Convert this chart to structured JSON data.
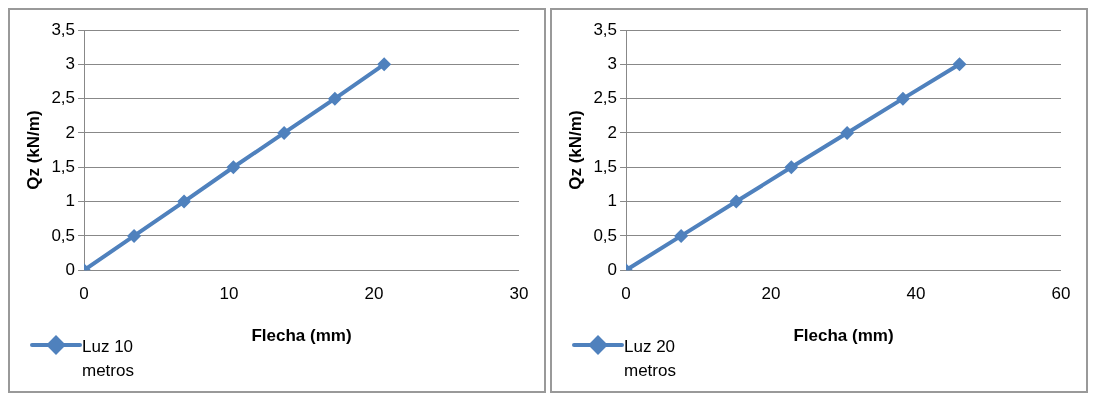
{
  "chart_data": [
    {
      "type": "line",
      "xlabel": "Flecha (mm)",
      "ylabel": "Qz (kN/m)",
      "x": [
        0,
        3.45,
        6.9,
        10.3,
        13.8,
        17.3,
        20.7
      ],
      "series": [
        {
          "name": "Luz 10 metros",
          "color": "#4f81bd",
          "values": [
            0,
            0.5,
            1,
            1.5,
            2,
            2.5,
            3
          ]
        }
      ],
      "xlim": [
        0,
        30
      ],
      "xticks": [
        0,
        10,
        20,
        30
      ],
      "ylim": [
        0,
        3.5
      ],
      "yticks": [
        0,
        {
          "value": 0.5,
          "label": "0,5"
        },
        1,
        {
          "value": 1.5,
          "label": "1,5"
        },
        2,
        {
          "value": 2.5,
          "label": "2,5"
        },
        3,
        {
          "value": 3.5,
          "label": "3,5"
        }
      ],
      "grid": "y",
      "legend": "bottom left",
      "marker": "diamond",
      "line_style": "solid"
    },
    {
      "type": "line",
      "xlabel": "Flecha (mm)",
      "ylabel": "Qz (kN/m)",
      "x": [
        0,
        7.6,
        15.2,
        22.8,
        30.5,
        38.2,
        46
      ],
      "series": [
        {
          "name": "Luz 20 metros",
          "color": "#4f81bd",
          "values": [
            0,
            0.5,
            1,
            1.5,
            2,
            2.5,
            3
          ]
        }
      ],
      "xlim": [
        0,
        60
      ],
      "xticks": [
        0,
        20,
        40,
        60
      ],
      "ylim": [
        0,
        3.5
      ],
      "yticks": [
        0,
        {
          "value": 0.5,
          "label": "0,5"
        },
        1,
        {
          "value": 1.5,
          "label": "1,5"
        },
        2,
        {
          "value": 2.5,
          "label": "2,5"
        },
        3,
        {
          "value": 3.5,
          "label": "3,5"
        }
      ],
      "grid": "y",
      "legend": "bottom left",
      "marker": "diamond",
      "line_style": "solid"
    }
  ]
}
